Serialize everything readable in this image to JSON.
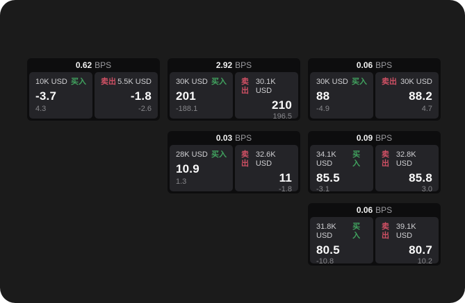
{
  "theme": {
    "page_bg": "#1b1b1b",
    "card_bg": "#0d0d0e",
    "panel_bg": "#242428",
    "buy_color": "#41a35f",
    "sell_color": "#cf5064"
  },
  "labels": {
    "bps": "BPS",
    "buy": "买入",
    "sell": "卖出"
  },
  "cards": [
    {
      "bps": "0.62",
      "buy": {
        "amount": "10K USD",
        "value": "-3.7",
        "delta": "4.3"
      },
      "sell": {
        "amount": "5.5K USD",
        "value": "-1.8",
        "delta": "-2.6"
      }
    },
    {
      "bps": "2.92",
      "buy": {
        "amount": "30K USD",
        "value": "201",
        "delta": "-188.1"
      },
      "sell": {
        "amount": "30.1K USD",
        "value": "210",
        "delta": "196.5"
      }
    },
    {
      "bps": "0.06",
      "buy": {
        "amount": "30K USD",
        "value": "88",
        "delta": "-4.9"
      },
      "sell": {
        "amount": "30K USD",
        "value": "88.2",
        "delta": "4.7"
      }
    },
    {
      "bps": "0.03",
      "buy": {
        "amount": "28K USD",
        "value": "10.9",
        "delta": "1.3"
      },
      "sell": {
        "amount": "32.6K USD",
        "value": "11",
        "delta": "-1.8"
      }
    },
    {
      "bps": "0.09",
      "buy": {
        "amount": "34.1K USD",
        "value": "85.5",
        "delta": "-3.1"
      },
      "sell": {
        "amount": "32.8K USD",
        "value": "85.8",
        "delta": "3.0"
      }
    },
    {
      "bps": "0.06",
      "buy": {
        "amount": "31.8K USD",
        "value": "80.5",
        "delta": "-10.8"
      },
      "sell": {
        "amount": "39.1K USD",
        "value": "80.7",
        "delta": "10.2"
      }
    }
  ]
}
